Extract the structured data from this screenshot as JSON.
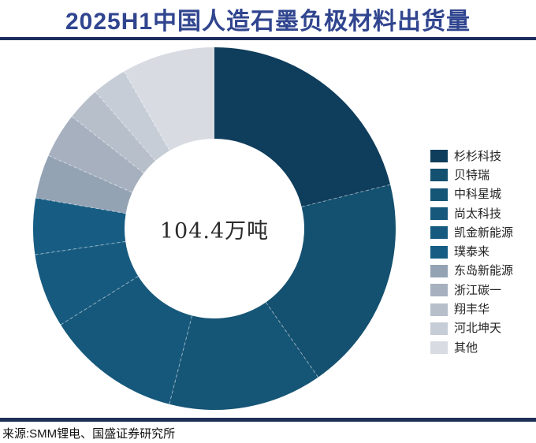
{
  "header": {
    "title": "2025H1中国人造石墨负极材料出货量"
  },
  "footer": {
    "source": "来源:SMM锂电、国盛证券研究所"
  },
  "colors": {
    "title_text": "#30458f",
    "title_rule": "#1c2d5e",
    "footer_bar": "#1f3058",
    "center_text": "#2b2b2b"
  },
  "chart_data": {
    "type": "pie",
    "subtype": "donut",
    "title": "2025H1中国人造石墨负极材料出货量",
    "center_label": "104.4万吨",
    "total": "104.4万吨",
    "unit": "share_percent_estimated_from_arc_angles",
    "legend_position": "right",
    "start_angle_deg": 0,
    "direction": "clockwise",
    "inner_radius_ratio": 0.5,
    "categories": [
      "杉杉科技",
      "贝特瑞",
      "中科星城",
      "尚太科技",
      "凯金新能源",
      "璞泰来",
      "东岛新能源",
      "浙江碳一",
      "翔丰华",
      "河北坤天",
      "其他"
    ],
    "values": [
      21.1,
      19.2,
      13.7,
      12.1,
      6.6,
      5.0,
      3.9,
      4.0,
      3.0,
      3.1,
      8.3
    ],
    "colors": [
      "#0f3d5c",
      "#14506f",
      "#155576",
      "#16587b",
      "#175a7f",
      "#175d83",
      "#94a3b3",
      "#a6b0bf",
      "#b6bfca",
      "#c6cdd6",
      "#d8dce2"
    ]
  }
}
